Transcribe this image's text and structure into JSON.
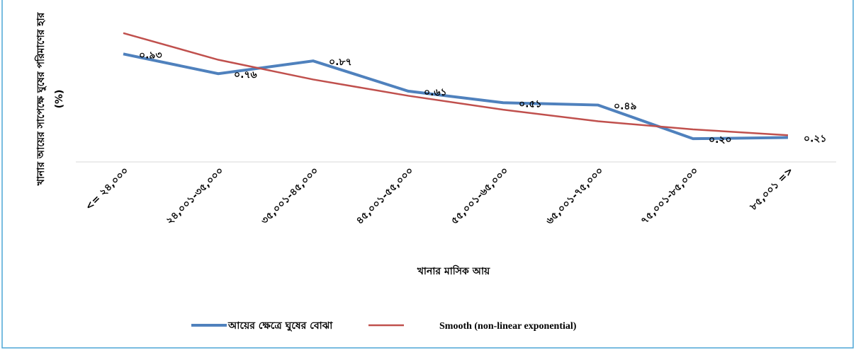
{
  "chart_data": {
    "type": "line",
    "x_label": "খানার মাসিক আয়",
    "y_label": [
      "খানার আয়ের সাপেক্ষে ঘুষের পরিমাণের হার",
      "(%)"
    ],
    "categories": [
      "<= ২৪,০০০",
      "২৪,০০১-৩৫,০০০",
      "৩৫,০০১-৪৫,০০০",
      "৪৫,০০১-৫৫,০০০",
      "৫৫,০০১-৬৫,০০০",
      "৬৫,০০১-৭৫,০০০",
      "৭৫,০০১-৮৫,০০০",
      "৮৫,০০১ =>"
    ],
    "series": [
      {
        "name": "আয়ের ক্ষেত্রে ঘুষের বোঝা",
        "color": "#4f81bd",
        "values": [
          0.93,
          0.76,
          0.87,
          0.61,
          0.51,
          0.49,
          0.2,
          0.21
        ],
        "value_labels": [
          "০.৯৩",
          "০.৭৬",
          "০.৮৭",
          "০.৬১",
          "০.৫১",
          "০.৪৯",
          "০.২০",
          "০.২১"
        ]
      },
      {
        "name": "Smooth (non-linear exponential)",
        "color": "#c0504d",
        "values": [
          1.11,
          0.88,
          0.71,
          0.57,
          0.45,
          0.35,
          0.28,
          0.23
        ]
      }
    ],
    "ylim": [
      0,
      1.2
    ]
  }
}
